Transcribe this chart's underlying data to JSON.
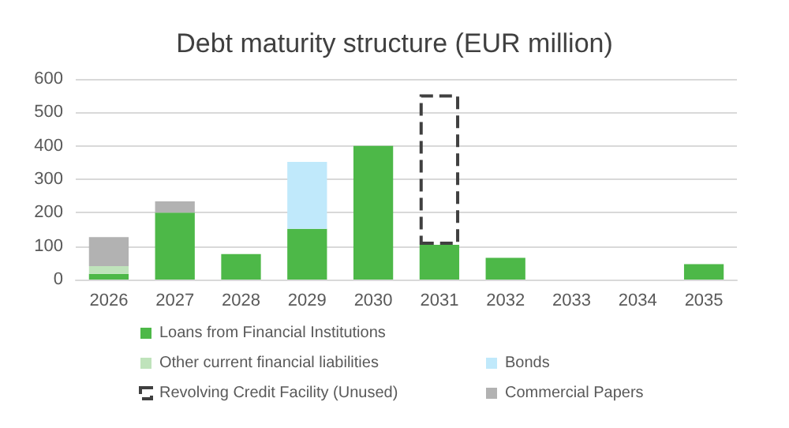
{
  "chart_data": {
    "type": "bar",
    "title": "Debt maturity structure (EUR million)",
    "stacked": true,
    "categories": [
      "2026",
      "2027",
      "2028",
      "2029",
      "2030",
      "2031",
      "2032",
      "2033",
      "2034",
      "2035"
    ],
    "series": [
      {
        "name": "Loans from Financial Institutions",
        "color": "#4db848",
        "values": [
          17,
          200,
          76,
          152,
          400,
          104,
          65,
          null,
          null,
          46
        ]
      },
      {
        "name": "Bonds",
        "color": "#c0e9fb",
        "values": [
          null,
          null,
          null,
          200,
          null,
          null,
          null,
          null,
          null,
          null
        ]
      },
      {
        "name": "Other current financial liabilities",
        "color": "#bfe3bb",
        "values": [
          23,
          null,
          null,
          null,
          null,
          null,
          null,
          null,
          null,
          null
        ]
      },
      {
        "name": "Commercial Papers",
        "color": "#b2b2b2",
        "values": [
          87,
          34,
          null,
          null,
          null,
          null,
          null,
          null,
          null,
          null
        ]
      },
      {
        "name": "Revolving Credit Facility (Unused)",
        "color": "#404040",
        "line_style": "dashed",
        "values": [
          null,
          null,
          null,
          null,
          null,
          450,
          null,
          null,
          null,
          null
        ]
      }
    ],
    "ylim": [
      0,
      600
    ],
    "yticks": [
      0,
      100,
      200,
      300,
      400,
      500,
      600
    ],
    "grid": "y",
    "legend": "bottom"
  }
}
